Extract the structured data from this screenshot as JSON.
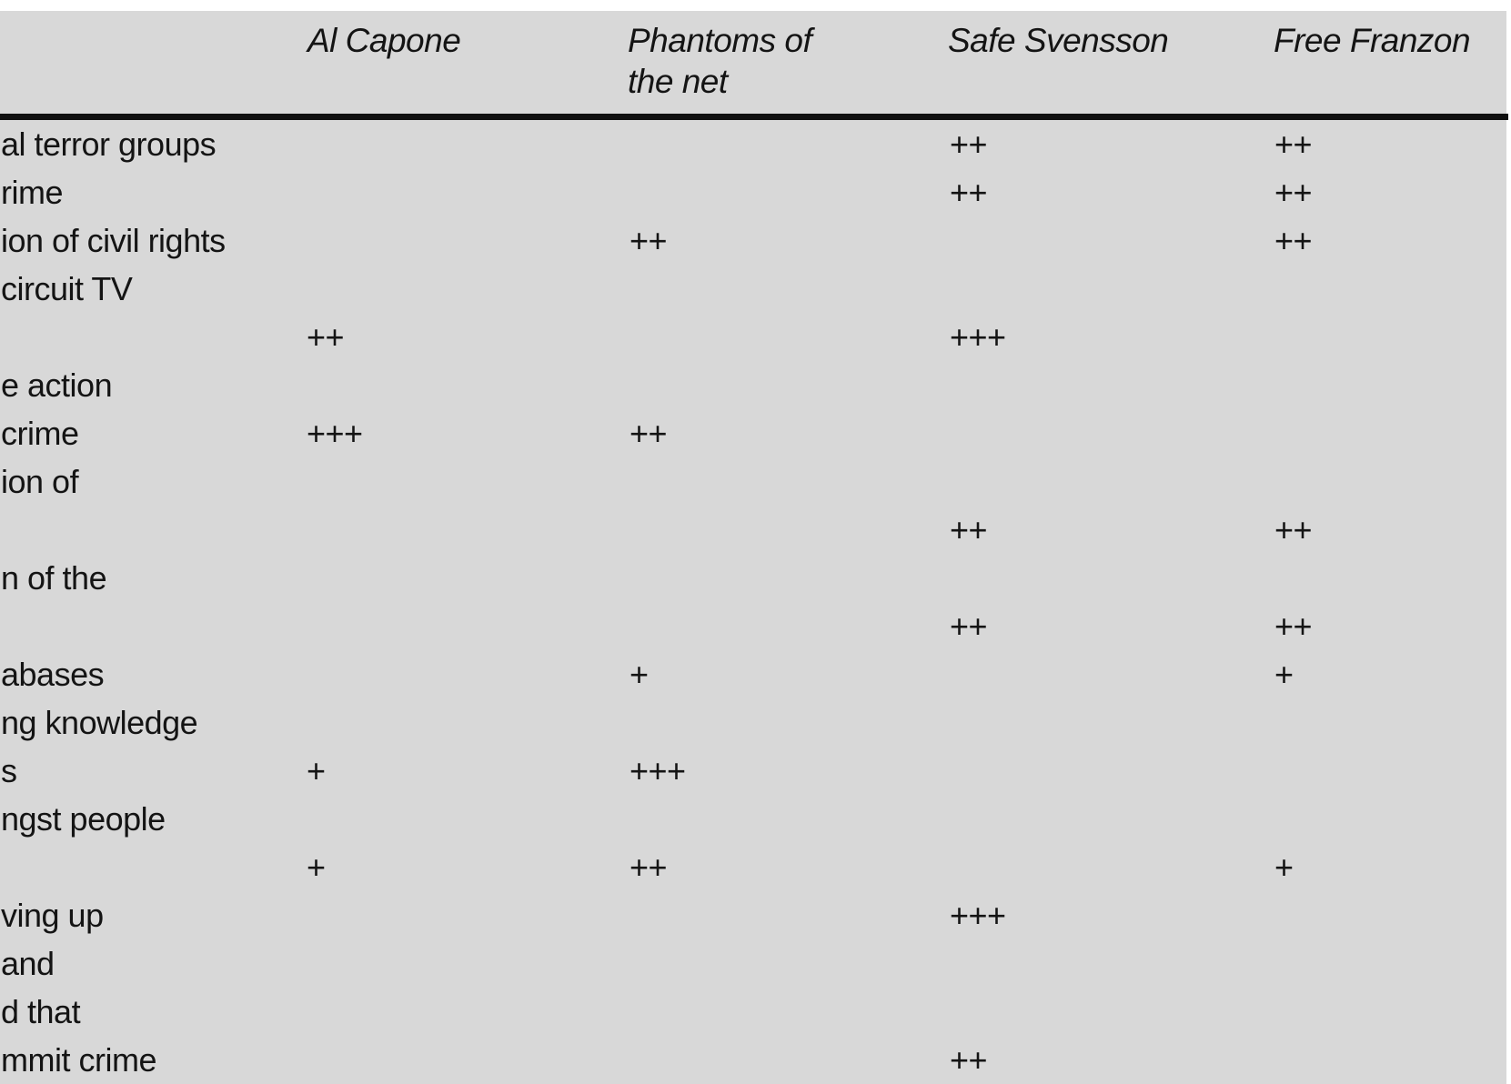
{
  "table": {
    "columns": [
      {
        "key": "al_capone",
        "label": "Al Capone"
      },
      {
        "key": "phantoms",
        "label": "Phantoms of the net"
      },
      {
        "key": "safe_svensson",
        "label": "Safe Svensson"
      },
      {
        "key": "free_franzon",
        "label": "Free Franzon"
      }
    ],
    "rating_scale": [
      "+",
      "++",
      "+++"
    ],
    "rows": [
      {
        "label": "al terror groups",
        "al_capone": "",
        "phantoms": "",
        "safe_svensson": "++",
        "free_franzon": "++"
      },
      {
        "label": "rime",
        "al_capone": "",
        "phantoms": "",
        "safe_svensson": "++",
        "free_franzon": "++"
      },
      {
        "label": "ion of civil rights",
        "al_capone": "",
        "phantoms": "++",
        "safe_svensson": "",
        "free_franzon": "++"
      },
      {
        "label": "circuit TV",
        "al_capone": "",
        "phantoms": "",
        "safe_svensson": "",
        "free_franzon": ""
      },
      {
        "label": "",
        "al_capone": "++",
        "phantoms": "",
        "safe_svensson": "+++",
        "free_franzon": ""
      },
      {
        "label": "e action",
        "al_capone": "",
        "phantoms": "",
        "safe_svensson": "",
        "free_franzon": ""
      },
      {
        "label": "crime",
        "al_capone": "+++",
        "phantoms": "++",
        "safe_svensson": "",
        "free_franzon": ""
      },
      {
        "label": "ion of",
        "al_capone": "",
        "phantoms": "",
        "safe_svensson": "",
        "free_franzon": ""
      },
      {
        "label": "",
        "al_capone": "",
        "phantoms": "",
        "safe_svensson": "++",
        "free_franzon": "++"
      },
      {
        "label": "n of the",
        "al_capone": "",
        "phantoms": "",
        "safe_svensson": "",
        "free_franzon": ""
      },
      {
        "label": "",
        "al_capone": "",
        "phantoms": "",
        "safe_svensson": "++",
        "free_franzon": "++"
      },
      {
        "label": "abases",
        "al_capone": "",
        "phantoms": "+",
        "safe_svensson": "",
        "free_franzon": "+"
      },
      {
        "label": "ng knowledge",
        "al_capone": "",
        "phantoms": "",
        "safe_svensson": "",
        "free_franzon": ""
      },
      {
        "label": "s",
        "al_capone": "+",
        "phantoms": "+++",
        "safe_svensson": "",
        "free_franzon": ""
      },
      {
        "label": "ngst people",
        "al_capone": "",
        "phantoms": "",
        "safe_svensson": "",
        "free_franzon": ""
      },
      {
        "label": "",
        "al_capone": "+",
        "phantoms": "++",
        "safe_svensson": "",
        "free_franzon": "+"
      },
      {
        "label": "ving up",
        "al_capone": "",
        "phantoms": "",
        "safe_svensson": "+++",
        "free_franzon": ""
      },
      {
        "label": "and",
        "al_capone": "",
        "phantoms": "",
        "safe_svensson": "",
        "free_franzon": ""
      },
      {
        "label": "d that",
        "al_capone": "",
        "phantoms": "",
        "safe_svensson": "",
        "free_franzon": ""
      },
      {
        "label": "mmit crime",
        "al_capone": "",
        "phantoms": "",
        "safe_svensson": "++",
        "free_franzon": ""
      }
    ],
    "colors": {
      "scan_background": "#d8d8d8",
      "page_background": "#ffffff",
      "text": "#141414",
      "rule": "#0f0f0f"
    }
  }
}
